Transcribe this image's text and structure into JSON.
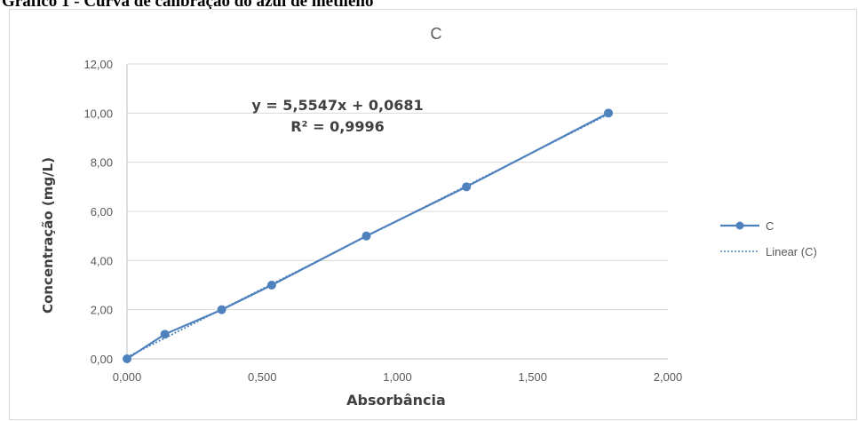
{
  "caption": "Gráfico 1 - Curva de calibração do azul de metileno",
  "chart_data": {
    "type": "scatter",
    "title": "C",
    "xlabel": "Absorbância",
    "ylabel": "Concentração (mg/L)",
    "xlim": [
      0,
      2
    ],
    "ylim": [
      0,
      12
    ],
    "x_ticks": [
      "0,000",
      "0,500",
      "1,000",
      "1,500",
      "2,000"
    ],
    "y_ticks": [
      "0,00",
      "2,00",
      "4,00",
      "6,00",
      "8,00",
      "10,00",
      "12,00"
    ],
    "grid": true,
    "legend_position": "right",
    "series": [
      {
        "name": "C",
        "color": "#4f81bd",
        "style": "line-markers",
        "x": [
          0.0,
          0.14,
          0.35,
          0.535,
          0.885,
          1.255,
          1.78
        ],
        "y": [
          0.0,
          1.0,
          2.0,
          3.0,
          5.0,
          7.0,
          10.0
        ]
      }
    ],
    "trendline": {
      "name": "Linear (C)",
      "type": "linear",
      "slope": 5.5547,
      "intercept": 0.0681,
      "color": "#4f81bd",
      "style": "dotted"
    },
    "annotations": [
      "y = 5,5547x + 0,0681",
      "R² = 0,9996"
    ]
  }
}
